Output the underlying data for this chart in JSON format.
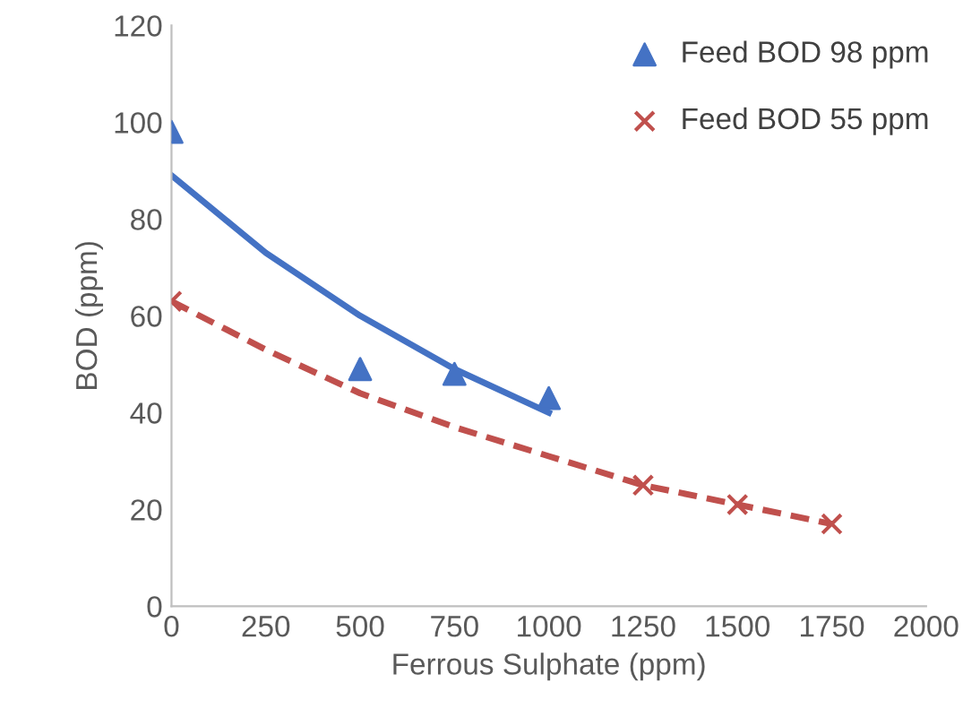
{
  "chart_data": {
    "type": "scatter",
    "xlabel": "Ferrous Sulphate (ppm)",
    "ylabel": "BOD (ppm)",
    "xlim": [
      0,
      2000
    ],
    "xticks": [
      0,
      250,
      500,
      750,
      1000,
      1250,
      1500,
      1750,
      2000
    ],
    "ylim": [
      0,
      120
    ],
    "yticks": [
      0,
      20,
      40,
      60,
      80,
      100,
      120
    ],
    "grid": false,
    "legend": "top right",
    "series": [
      {
        "name": "Feed BOD 98 ppm",
        "color": "#4472c4",
        "marker": "triangle",
        "x": [
          0,
          500,
          750,
          1000
        ],
        "values": [
          98,
          49,
          48,
          43
        ]
      },
      {
        "name": "Feed BOD 55 ppm",
        "color": "#c0504d",
        "marker": "cross",
        "x": [
          0,
          1250,
          1500,
          1750
        ],
        "values": [
          63,
          25,
          21,
          17
        ]
      },
      {
        "type": "line",
        "color": "#4472c4",
        "line_style": "solid",
        "x": [
          0,
          250,
          500,
          750,
          1000
        ],
        "values": [
          89,
          73,
          60,
          49,
          40
        ]
      },
      {
        "type": "line",
        "color": "#c0504d",
        "line_style": "dashed",
        "x": [
          0,
          250,
          500,
          750,
          1000,
          1250,
          1500,
          1750
        ],
        "values": [
          63,
          53,
          44,
          37,
          31,
          25,
          21,
          17
        ]
      }
    ]
  }
}
